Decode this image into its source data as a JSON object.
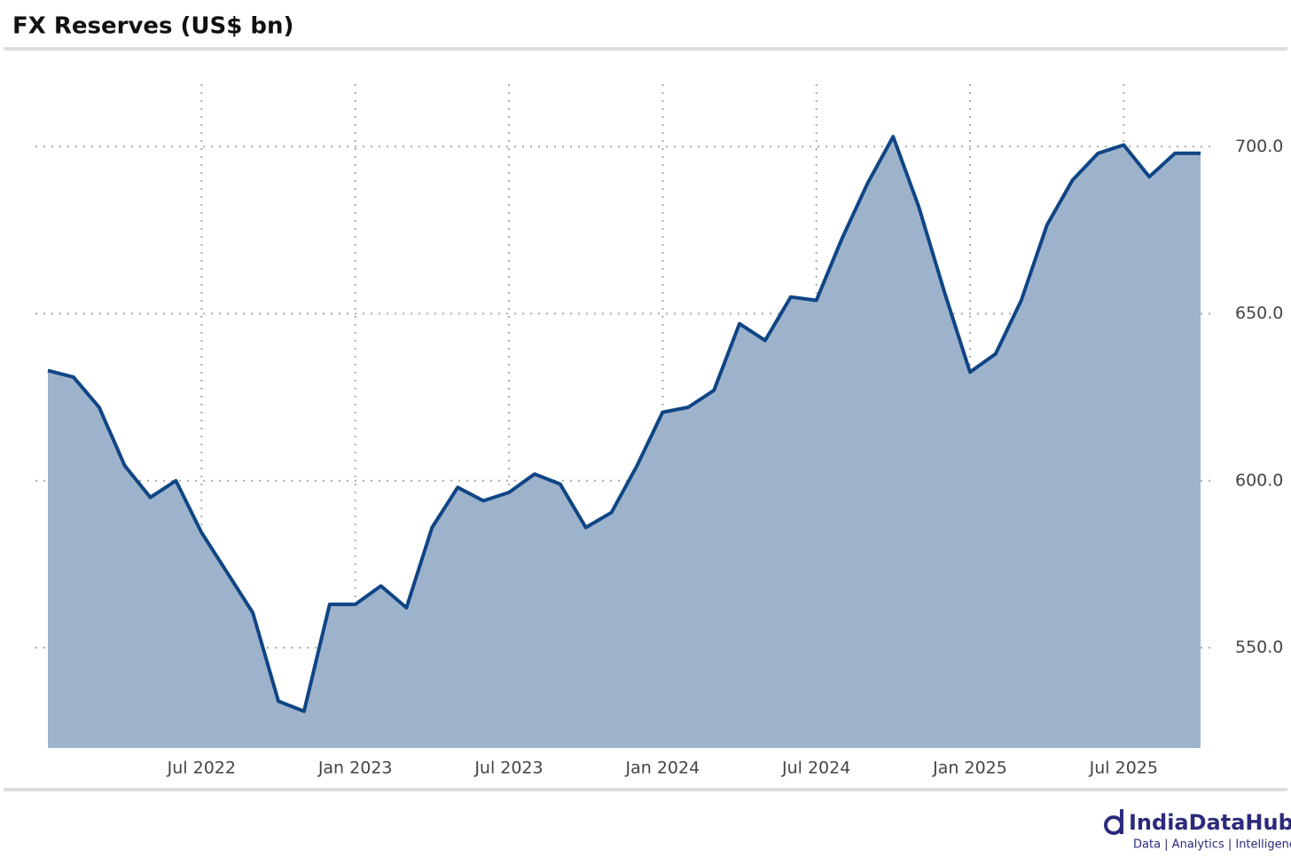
{
  "chart_data": {
    "type": "area",
    "title": "FX Reserves (US$ bn)",
    "x": [
      "2022-01",
      "2022-02",
      "2022-03",
      "2022-04",
      "2022-05",
      "2022-06",
      "2022-07",
      "2022-08",
      "2022-09",
      "2022-10",
      "2022-11",
      "2022-12",
      "2023-01",
      "2023-02",
      "2023-03",
      "2023-04",
      "2023-05",
      "2023-06",
      "2023-07",
      "2023-08",
      "2023-09",
      "2023-10",
      "2023-11",
      "2023-12",
      "2024-01",
      "2024-02",
      "2024-03",
      "2024-04",
      "2024-05",
      "2024-06",
      "2024-07",
      "2024-08",
      "2024-09",
      "2024-10",
      "2024-11",
      "2024-12",
      "2025-01",
      "2025-02",
      "2025-03",
      "2025-04",
      "2025-05",
      "2025-06",
      "2025-07",
      "2025-08",
      "2025-09",
      "2025-10"
    ],
    "values": [
      633,
      631,
      622,
      604.5,
      595,
      600,
      584.5,
      572.5,
      560.5,
      534,
      531,
      563,
      563,
      568.5,
      562,
      586,
      598,
      594,
      596.5,
      602,
      599,
      586,
      590.5,
      604.5,
      620.5,
      622,
      627,
      647,
      642,
      655,
      654,
      672.5,
      689,
      703,
      682,
      656.5,
      632.5,
      638,
      654,
      676.5,
      690,
      698,
      700.5,
      691,
      698,
      698
    ],
    "color": "#0f4585",
    "fill_color": "#9db3cc",
    "xlim": [
      "2022-01",
      "2025-10"
    ],
    "xticks": [
      {
        "value": "2022-07",
        "label": "Jul 2022"
      },
      {
        "value": "2023-01",
        "label": "Jan 2023"
      },
      {
        "value": "2023-07",
        "label": "Jul 2023"
      },
      {
        "value": "2024-01",
        "label": "Jan 2024"
      },
      {
        "value": "2024-07",
        "label": "Jul 2024"
      },
      {
        "value": "2025-01",
        "label": "Jan 2025"
      },
      {
        "value": "2025-07",
        "label": "Jul 2025"
      }
    ],
    "ylim": [
      520,
      720
    ],
    "yticks": [
      {
        "value": 550,
        "label": "550.0"
      },
      {
        "value": 600,
        "label": "600.0"
      },
      {
        "value": 650,
        "label": "650.0"
      },
      {
        "value": 700,
        "label": "700.0"
      }
    ],
    "grid": true
  },
  "brand": {
    "name": "IndiaDataHub",
    "tagline": "Data | Analytics | Intelligence"
  }
}
